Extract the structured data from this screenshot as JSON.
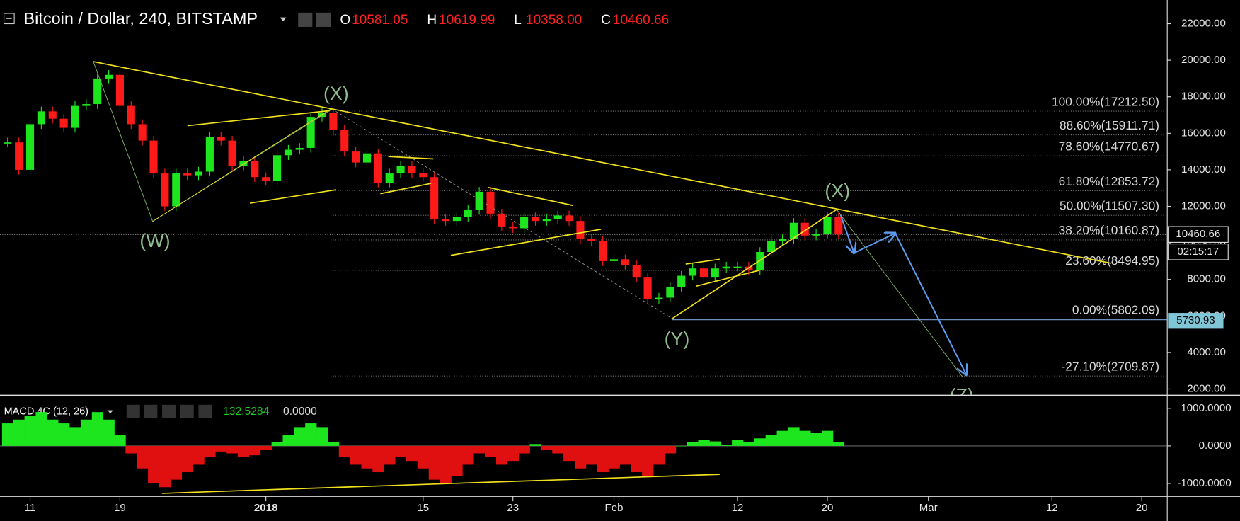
{
  "chart_data": [
    {
      "type": "candlestick",
      "title": "Bitcoin / Dollar, 240, BITSTAMP",
      "ohlc_labels": [
        "O",
        "H",
        "L",
        "C"
      ],
      "ohlc_values": [
        "10581.05",
        "10619.99",
        "10358.00",
        "10460.66"
      ],
      "closes": [
        15500,
        14000,
        16500,
        17200,
        16800,
        16300,
        17500,
        17600,
        19000,
        19200,
        17500,
        16500,
        15600,
        13800,
        12000,
        13800,
        13700,
        13900,
        15800,
        15600,
        14200,
        14500,
        13600,
        13400,
        14800,
        15100,
        15200,
        16900,
        17100,
        16200,
        15000,
        14400,
        14900,
        13300,
        13800,
        14200,
        13800,
        13600,
        11300,
        11200,
        11400,
        11800,
        12800,
        11600,
        10900,
        10800,
        11400,
        11200,
        11300,
        11500,
        11200,
        10200,
        10100,
        9000,
        9100,
        8800,
        8100,
        6900,
        7000,
        7600,
        8200,
        8600,
        8100,
        8600,
        8700,
        8700,
        8500,
        9500,
        10100,
        10200,
        11100,
        10400,
        10500,
        11400,
        10460.66
      ],
      "up_color": "#1ee61e",
      "down_color": "#ff1a1a",
      "xlim": [
        -0.68,
        103.27
      ],
      "xticks": [
        {
          "value": 2,
          "label": "11"
        },
        {
          "value": 10,
          "label": "19"
        },
        {
          "value": 23,
          "label": "2018"
        },
        {
          "value": 37,
          "label": "15"
        },
        {
          "value": 45,
          "label": "23"
        },
        {
          "value": 54,
          "label": "Feb"
        },
        {
          "value": 65,
          "label": "12"
        },
        {
          "value": 73,
          "label": "20"
        },
        {
          "value": 82,
          "label": "Mar"
        },
        {
          "value": 93,
          "label": "12"
        },
        {
          "value": 101,
          "label": "20"
        }
      ],
      "ylim": [
        1654,
        23299
      ],
      "yticks": [
        {
          "value": 22000,
          "label": "22000.00"
        },
        {
          "value": 20000,
          "label": "20000.00"
        },
        {
          "value": 18000,
          "label": "18000.00"
        },
        {
          "value": 16000,
          "label": "16000.00"
        },
        {
          "value": 14000,
          "label": "14000.00"
        },
        {
          "value": 12000,
          "label": "12000.00"
        },
        {
          "value": 10000,
          "label": "10000.00"
        },
        {
          "value": 8000,
          "label": "8000.00"
        },
        {
          "value": 6000,
          "label": "6000.00"
        },
        {
          "value": 4000,
          "label": "4000.00"
        },
        {
          "value": 2000,
          "label": "2000.00"
        }
      ],
      "fib_levels": [
        {
          "label": "100.00%(17212.50)",
          "value": 17212.5
        },
        {
          "label": "88.60%(15911.71)",
          "value": 15911.71
        },
        {
          "label": "78.60%(14770.67)",
          "value": 14770.67
        },
        {
          "label": "61.80%(12853.72)",
          "value": 12853.72
        },
        {
          "label": "50.00%(11507.30)",
          "value": 11507.3
        },
        {
          "label": "38.20%(10160.87)",
          "value": 10160.87
        },
        {
          "label": "23.60%(8494.95)",
          "value": 8494.95
        },
        {
          "label": "0.00%(5802.09)",
          "value": 5802.09
        },
        {
          "label": "-27.10%(2709.87)",
          "value": 2709.87
        }
      ],
      "wave_labels": [
        "(W)",
        "(X)",
        "(Y)",
        "(X)",
        "(Z)"
      ],
      "last_price": {
        "label": "10460.66",
        "value": 10460.66
      },
      "countdown": "02:15:17",
      "level_tag": {
        "label": "5730.93",
        "value": 5730.93
      }
    },
    {
      "type": "bar",
      "title": "MACD 4C (12, 26)",
      "header_values": [
        "132.5284",
        "0.0000"
      ],
      "values": [
        600,
        700,
        800,
        900,
        700,
        600,
        500,
        700,
        900,
        700,
        300,
        -200,
        -600,
        -1000,
        -1100,
        -900,
        -700,
        -500,
        -300,
        -150,
        -200,
        -300,
        -250,
        -100,
        100,
        300,
        500,
        600,
        500,
        100,
        -300,
        -500,
        -600,
        -700,
        -500,
        -300,
        -400,
        -600,
        -900,
        -1000,
        -800,
        -500,
        -200,
        -300,
        -500,
        -400,
        -200,
        50,
        -100,
        -200,
        -400,
        -600,
        -500,
        -700,
        -600,
        -500,
        -700,
        -800,
        -500,
        -200,
        0,
        100,
        150,
        120,
        30,
        150,
        100,
        200,
        300,
        400,
        500,
        400,
        350,
        400,
        100
      ],
      "up_color": "#1ee61e",
      "down_color": "#e01010",
      "ylim": [
        -1347,
        1305
      ],
      "yticks": [
        {
          "value": 1000,
          "label": "1000.0000"
        },
        {
          "value": 0,
          "label": "0.0000"
        },
        {
          "value": -1000,
          "label": "-1000.0000"
        }
      ]
    }
  ]
}
